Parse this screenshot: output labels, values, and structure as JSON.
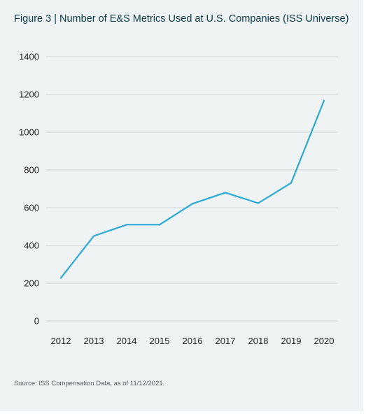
{
  "title": "Figure 3 | Number of E&S Metrics Used at U.S. Companies (ISS Universe)",
  "source": "Source: ISS Compensation Data, as of 11/12/2021.",
  "colors": {
    "line": "#2aa8d6",
    "grid": "#cfd5d8",
    "background": "#eff3f4",
    "title": "#0a3a4a"
  },
  "chart_data": {
    "type": "line",
    "title": "Figure 3 | Number of E&S Metrics Used at U.S. Companies (ISS Universe)",
    "xlabel": "",
    "ylabel": "",
    "categories": [
      "2012",
      "2013",
      "2014",
      "2015",
      "2016",
      "2017",
      "2018",
      "2019",
      "2020"
    ],
    "series": [
      {
        "values": [
          228,
          450,
          510,
          510,
          621,
          680,
          624,
          731,
          1167
        ]
      }
    ],
    "yticks": [
      "0",
      "200",
      "400",
      "600",
      "800",
      "1000",
      "1200",
      "1400"
    ],
    "ylim": [
      0,
      1400
    ],
    "grid": true,
    "legend": "none"
  }
}
